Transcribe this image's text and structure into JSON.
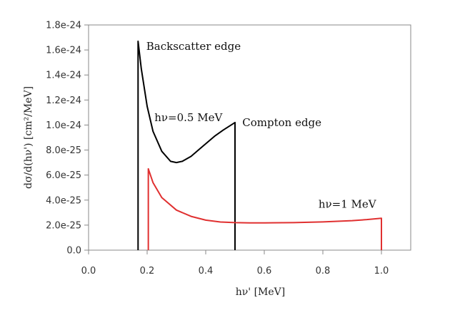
{
  "chart_data": {
    "type": "line",
    "xlabel": "hν' [MeV]",
    "ylabel": "dσ/d(hν') [cm²/MeV]",
    "xlim": [
      0.0,
      1.1
    ],
    "ylim": [
      0.0,
      1.8e-24
    ],
    "x_ticks": [
      0.0,
      0.2,
      0.4,
      0.6,
      0.8,
      1.0
    ],
    "x_tick_labels": [
      "0.0",
      "0.2",
      "0.4",
      "0.6",
      "0.8",
      "1.0"
    ],
    "y_ticks": [
      0,
      2e-25,
      4e-25,
      6e-25,
      8e-25,
      1e-24,
      1.2e-24,
      1.4e-24,
      1.6e-24,
      1.8e-24
    ],
    "y_tick_labels": [
      "0.0",
      "2.0e-25",
      "4.0e-25",
      "6.0e-25",
      "8.0e-25",
      "1.0e-24",
      "1.2e-24",
      "1.4e-24",
      "1.6e-24",
      "1.8e-24"
    ],
    "grid": false,
    "series": [
      {
        "color": "#000000",
        "x": [
          0.169,
          0.169,
          0.18,
          0.2,
          0.22,
          0.25,
          0.28,
          0.3,
          0.32,
          0.35,
          0.38,
          0.4,
          0.43,
          0.46,
          0.48,
          0.5,
          0.5
        ],
        "y": [
          0,
          1.67e-24,
          1.45e-24,
          1.15e-24,
          9.5e-25,
          7.9e-25,
          7.1e-25,
          7e-25,
          7.1e-25,
          7.5e-25,
          8.1e-25,
          8.5e-25,
          9.1e-25,
          9.6e-25,
          9.9e-25,
          1.02e-24,
          0
        ]
      },
      {
        "color": "#e03030",
        "x": [
          0.204,
          0.204,
          0.22,
          0.25,
          0.3,
          0.35,
          0.4,
          0.45,
          0.5,
          0.55,
          0.6,
          0.7,
          0.8,
          0.9,
          0.95,
          1.0,
          1.0
        ],
        "y": [
          0,
          6.5e-25,
          5.4e-25,
          4.2e-25,
          3.2e-25,
          2.7e-25,
          2.4e-25,
          2.25e-25,
          2.2e-25,
          2.18e-25,
          2.18e-25,
          2.2e-25,
          2.26e-25,
          2.36e-25,
          2.44e-25,
          2.55e-25,
          0
        ]
      }
    ],
    "annotations": [
      {
        "text": "Backscatter edge",
        "x": 0.197,
        "y": 1.6e-24
      },
      {
        "text": "hν=0.5 MeV",
        "x": 0.225,
        "y": 1.03e-24
      },
      {
        "text": "Compton edge",
        "x": 0.525,
        "y": 9.9e-25
      },
      {
        "text": "hν=1 MeV",
        "x": 0.785,
        "y": 3.4e-25
      }
    ]
  }
}
